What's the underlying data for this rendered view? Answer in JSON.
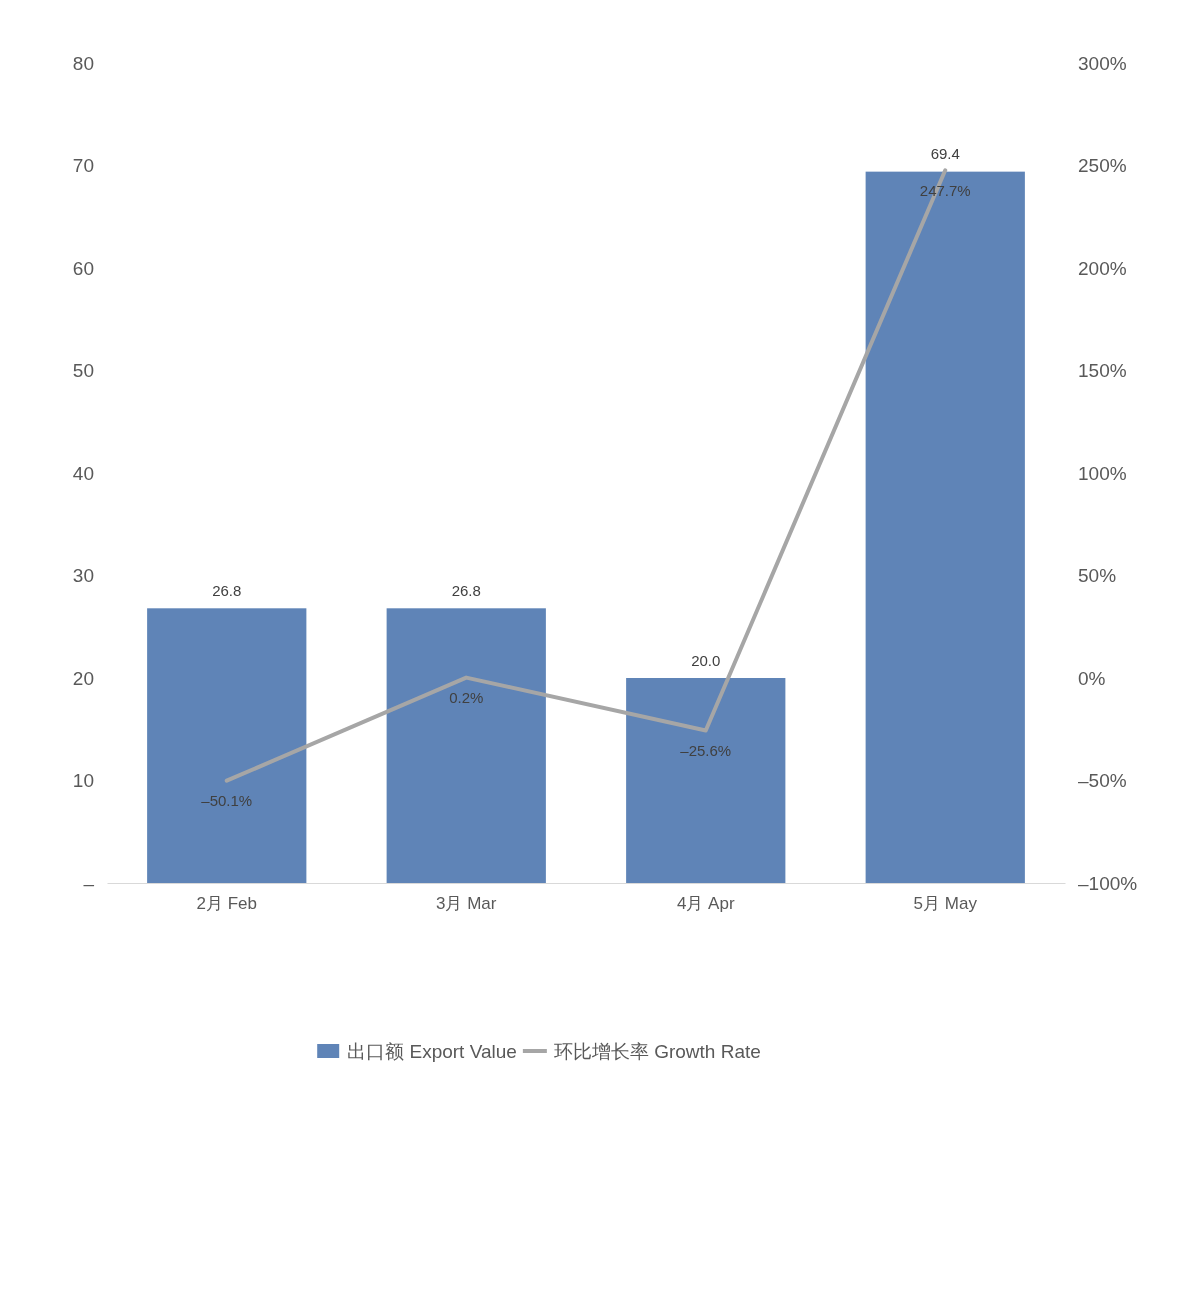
{
  "chart_data": {
    "type": "bar",
    "categories": [
      "2月 Feb",
      "3月 Mar",
      "4月 Apr",
      "5月 May"
    ],
    "series": [
      {
        "name": "出口额 Export Value",
        "color": "#5f84b7",
        "values": [
          26.8,
          26.8,
          20.0,
          69.4
        ],
        "value_labels": [
          "26.8",
          "26.8",
          "20.0",
          "69.4"
        ]
      },
      {
        "name": "环比增长率 Growth Rate",
        "type": "line",
        "axis": "y2",
        "color": "#a6a6a6",
        "values": [
          -50.1,
          0.2,
          -25.6,
          247.7
        ],
        "value_labels": [
          "–50.1%",
          "0.2%",
          "–25.6%",
          "247.7%"
        ]
      }
    ],
    "ylim": [
      0,
      80
    ],
    "yticks": [
      {
        "value": 0,
        "label": "–"
      },
      10,
      20,
      30,
      40,
      50,
      60,
      70,
      80
    ],
    "y2lim": [
      -100,
      300
    ],
    "y2ticks": [
      {
        "value": -100,
        "label": "–100%"
      },
      {
        "value": -50,
        "label": "–50%"
      },
      {
        "value": 0,
        "label": "0%"
      },
      {
        "value": 50,
        "label": "50%"
      },
      {
        "value": 100,
        "label": "100%"
      },
      {
        "value": 150,
        "label": "150%"
      },
      {
        "value": 200,
        "label": "200%"
      },
      {
        "value": 250,
        "label": "250%"
      },
      {
        "value": 300,
        "label": "300%"
      }
    ],
    "legend": "bottom"
  }
}
